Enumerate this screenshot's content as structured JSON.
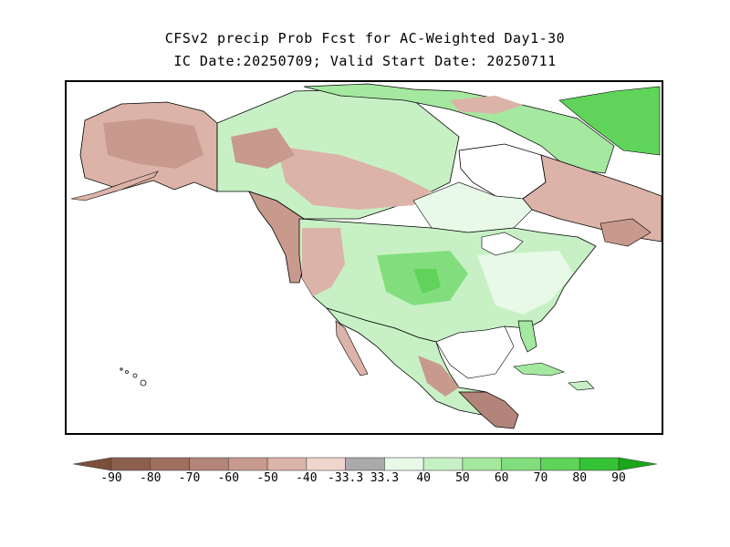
{
  "title": {
    "line1": "CFSv2 precip Prob Fcst for AC-Weighted Day1-30",
    "line2": "IC Date:20250709; Valid Start Date: 20250711"
  },
  "legend": {
    "labels": [
      "-90",
      "-80",
      "-70",
      "-60",
      "-50",
      "-40",
      "-33.3",
      "33.3",
      "40",
      "50",
      "60",
      "70",
      "80",
      "90"
    ],
    "colors": [
      "#7a4f3c",
      "#8c5f4d",
      "#a06f5e",
      "#b3847a",
      "#c89a8e",
      "#dcb3a8",
      "#efd6cd",
      "#aaaaaa",
      "#e8f9e8",
      "#c7f1c5",
      "#a5e8a0",
      "#82de7d",
      "#5fd35a",
      "#36c236",
      "#19a619"
    ]
  },
  "map": {
    "background": "#fafafa",
    "regions": [
      {
        "name": "alaska",
        "tone": "brown-light"
      },
      {
        "name": "yukon-nwt",
        "tone": "green-light"
      },
      {
        "name": "canadian-arctic",
        "tone": "green"
      },
      {
        "name": "greenland-edge",
        "tone": "green"
      },
      {
        "name": "hudson-bay",
        "tone": "white"
      },
      {
        "name": "quebec-labrador",
        "tone": "brown-light"
      },
      {
        "name": "pacific-northwest",
        "tone": "brown"
      },
      {
        "name": "us-plains",
        "tone": "green"
      },
      {
        "name": "us-east",
        "tone": "green-light"
      },
      {
        "name": "mexico",
        "tone": "green-light"
      },
      {
        "name": "southern-mexico",
        "tone": "brown"
      }
    ]
  }
}
